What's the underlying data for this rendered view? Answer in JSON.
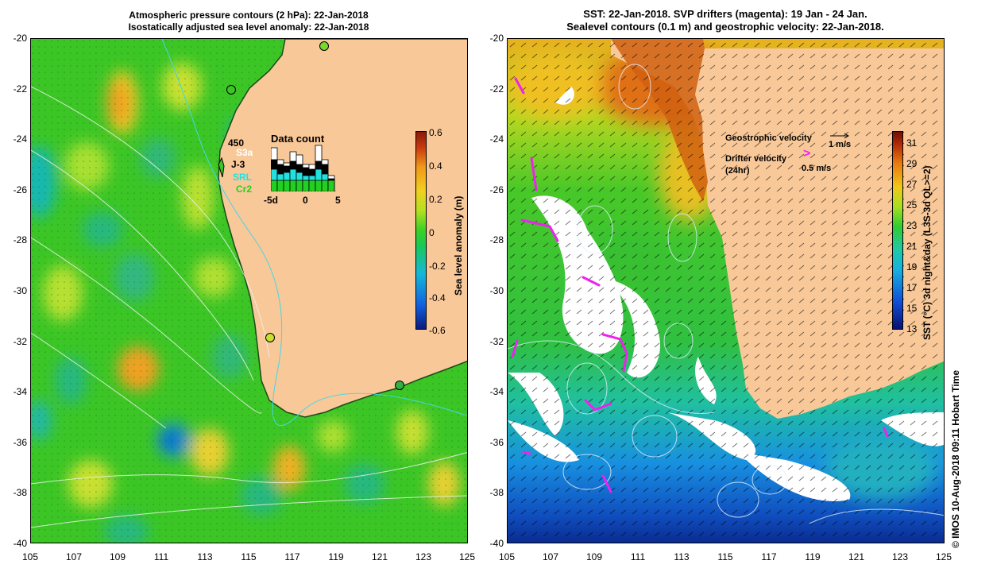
{
  "left_panel": {
    "title_line1": "Atmospheric pressure contours (2 hPa): 22-Jan-2018",
    "title_line2": "Isostatically adjusted sea level anomaly: 22-Jan-2018",
    "colorbar_label": "Sea level anomaly (m)",
    "colorbar_ticks": [
      "0.6",
      "0.4",
      "0.2",
      "0",
      "-0.2",
      "-0.4",
      "-0.6"
    ],
    "data_count": {
      "title": "Data count",
      "max_label": "450",
      "satellites": [
        {
          "name": "S3a",
          "color": "#ffffff"
        },
        {
          "name": "J-3",
          "color": "#000000"
        },
        {
          "name": "SRL",
          "color": "#22e0e0"
        },
        {
          "name": "Cr2",
          "color": "#22d022"
        }
      ],
      "x_ticks": [
        "-5d",
        "0",
        "5"
      ]
    }
  },
  "right_panel": {
    "title_line1": "SST: 22-Jan-2018. SVP drifters (magenta): 19 Jan - 24 Jan.",
    "title_line2": "Sealevel contours (0.1 m) and geostrophic velocity: 22-Jan-2018.",
    "colorbar_label": "SST (°C) 3d night&day (L3S-3d QL>=2)",
    "colorbar_ticks": [
      "31",
      "29",
      "27",
      "25",
      "23",
      "21",
      "19",
      "17",
      "15",
      "13"
    ],
    "geostrophic_label": "Geostrophic velocity",
    "geostrophic_scale": "1 m/s",
    "drifter_label_1": "Drifter velocity",
    "drifter_label_2": "(24hr)",
    "drifter_scale": "0.5 m/s",
    "drifter_glyph": ">"
  },
  "axes": {
    "y_ticks": [
      "-20",
      "-22",
      "-24",
      "-26",
      "-28",
      "-30",
      "-32",
      "-34",
      "-36",
      "-38",
      "-40"
    ],
    "x_ticks": [
      "105",
      "107",
      "109",
      "111",
      "113",
      "115",
      "117",
      "119",
      "121",
      "123",
      "125"
    ]
  },
  "footer": "© IMOS 10-Aug-2018 09:11 Hobart Time",
  "colors": {
    "land": "#f9c898",
    "drifter": "#ee22ee",
    "cloud": "#ffffff"
  }
}
